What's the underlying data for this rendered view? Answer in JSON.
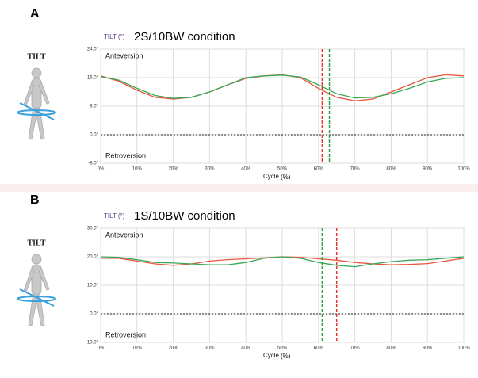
{
  "chart_data": [
    {
      "type": "line",
      "panel_label": "A",
      "side_label": "TILT",
      "title_prefix": "TILT (°)",
      "title": "2S/10BW condition",
      "xlabel": "Cycle",
      "xlabel_unit": "(%)",
      "annotations": [
        "Anteversion",
        "Retroversion"
      ],
      "x": [
        0,
        5,
        10,
        15,
        20,
        25,
        30,
        35,
        40,
        45,
        50,
        55,
        60,
        65,
        70,
        75,
        80,
        85,
        90,
        95,
        100
      ],
      "series": [
        {
          "color": "#e8553f",
          "values": [
            16.5,
            15,
            12.5,
            10.5,
            10,
            10.5,
            12,
            14,
            15.8,
            16.5,
            16.8,
            16,
            13,
            10.5,
            9.5,
            10,
            12,
            14,
            16,
            16.8,
            16.5
          ]
        },
        {
          "color": "#3aa655",
          "values": [
            16.3,
            15.3,
            13,
            11,
            10.2,
            10.5,
            12,
            14,
            16,
            16.5,
            16.7,
            16.2,
            14,
            11.5,
            10.3,
            10.5,
            11.5,
            13,
            14.8,
            15.8,
            16
          ]
        }
      ],
      "markers": [
        {
          "x": 61,
          "color": "#e8332a"
        },
        {
          "x": 63,
          "color": "#2ea043"
        }
      ],
      "hline": 0,
      "xlim": [
        0,
        100
      ],
      "ylim": [
        -8,
        24
      ],
      "xticks": [
        {
          "value": 0,
          "label": "0%"
        },
        {
          "value": 10,
          "label": "10%"
        },
        {
          "value": 20,
          "label": "20%"
        },
        {
          "value": 30,
          "label": "30%"
        },
        {
          "value": 40,
          "label": "40%"
        },
        {
          "value": 50,
          "label": "50%"
        },
        {
          "value": 60,
          "label": "60%"
        },
        {
          "value": 70,
          "label": "70%"
        },
        {
          "value": 80,
          "label": "80%"
        },
        {
          "value": 90,
          "label": "90%"
        },
        {
          "value": 100,
          "label": "100%"
        }
      ],
      "yticks": [
        {
          "value": -8,
          "label": "-8.0°"
        },
        {
          "value": 0,
          "label": "0.0°"
        },
        {
          "value": 8,
          "label": "8.0°"
        },
        {
          "value": 16,
          "label": "16.0°"
        },
        {
          "value": 24,
          "label": "24.0°"
        }
      ],
      "grid": true
    },
    {
      "type": "line",
      "panel_label": "B",
      "side_label": "TILT",
      "title_prefix": "TILT (°)",
      "title": "1S/10BW condition",
      "xlabel": "Cycle",
      "xlabel_unit": "(%)",
      "annotations": [
        "Anteversion",
        "Retroversion"
      ],
      "x": [
        0,
        5,
        10,
        15,
        20,
        25,
        30,
        35,
        40,
        45,
        50,
        55,
        60,
        65,
        70,
        75,
        80,
        85,
        90,
        95,
        100
      ],
      "series": [
        {
          "color": "#e8553f",
          "values": [
            19.5,
            19.5,
            18.5,
            17.5,
            17,
            17.5,
            18.5,
            19,
            19.3,
            19.6,
            20,
            19.8,
            19.3,
            18.8,
            18,
            17.5,
            17.2,
            17.3,
            17.6,
            18.5,
            19.5
          ]
        },
        {
          "color": "#3aa655",
          "values": [
            20,
            19.8,
            19,
            18,
            17.8,
            17.5,
            17.2,
            17.2,
            18,
            19.5,
            20,
            19.5,
            18,
            17,
            16.5,
            17.5,
            18.3,
            18.8,
            19,
            19.5,
            20
          ]
        }
      ],
      "markers": [
        {
          "x": 61,
          "color": "#2ea043"
        },
        {
          "x": 65,
          "color": "#e8332a"
        }
      ],
      "hline": 0,
      "xlim": [
        0,
        100
      ],
      "ylim": [
        -10,
        30
      ],
      "xticks": [
        {
          "value": 0,
          "label": "0%"
        },
        {
          "value": 10,
          "label": "10%"
        },
        {
          "value": 20,
          "label": "20%"
        },
        {
          "value": 30,
          "label": "30%"
        },
        {
          "value": 40,
          "label": "40%"
        },
        {
          "value": 50,
          "label": "50%"
        },
        {
          "value": 60,
          "label": "60%"
        },
        {
          "value": 70,
          "label": "70%"
        },
        {
          "value": 80,
          "label": "80%"
        },
        {
          "value": 90,
          "label": "90%"
        },
        {
          "value": 100,
          "label": "100%"
        }
      ],
      "yticks": [
        {
          "value": -10,
          "label": "-10.0°"
        },
        {
          "value": 0,
          "label": "0.0°"
        },
        {
          "value": 10,
          "label": "10.0°"
        },
        {
          "value": 20,
          "label": "20.0°"
        },
        {
          "value": 30,
          "label": "30.0°"
        }
      ],
      "grid": true
    }
  ]
}
